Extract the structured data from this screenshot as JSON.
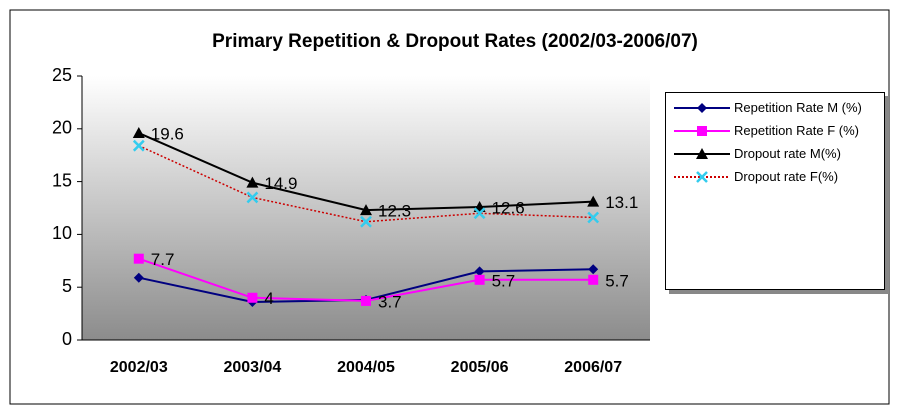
{
  "chart_data": {
    "type": "line",
    "title": "Primary Repetition & Dropout Rates (2002/03-2006/07)",
    "categories": [
      "2002/03",
      "2003/04",
      "2004/05",
      "2005/06",
      "2006/07"
    ],
    "series": [
      {
        "name": "Repetition Rate M (%)",
        "color": "#000080",
        "marker": "diamond",
        "dash": "solid",
        "data_labels": false,
        "values": [
          5.9,
          3.6,
          3.8,
          6.5,
          6.7
        ]
      },
      {
        "name": "Repetition Rate  F (%)",
        "color": "#ff00ff",
        "marker": "square",
        "dash": "solid",
        "data_labels": true,
        "values": [
          7.7,
          4,
          3.7,
          5.7,
          5.7
        ]
      },
      {
        "name": "Dropout rate M(%)",
        "color": "#000000",
        "marker": "triangle",
        "dash": "solid",
        "data_labels": true,
        "values": [
          19.6,
          14.9,
          12.3,
          12.6,
          13.1
        ]
      },
      {
        "name": "Dropout rate F(%)",
        "color": "#cc0000",
        "marker_color": "#33ccee",
        "marker": "x",
        "dash": "dotted",
        "data_labels": false,
        "values": [
          18.4,
          13.5,
          11.2,
          12.0,
          11.6
        ]
      }
    ],
    "ylim": [
      0,
      25
    ],
    "yticks": [
      0,
      5,
      10,
      15,
      20,
      25
    ],
    "grid": false,
    "legend": "right"
  }
}
